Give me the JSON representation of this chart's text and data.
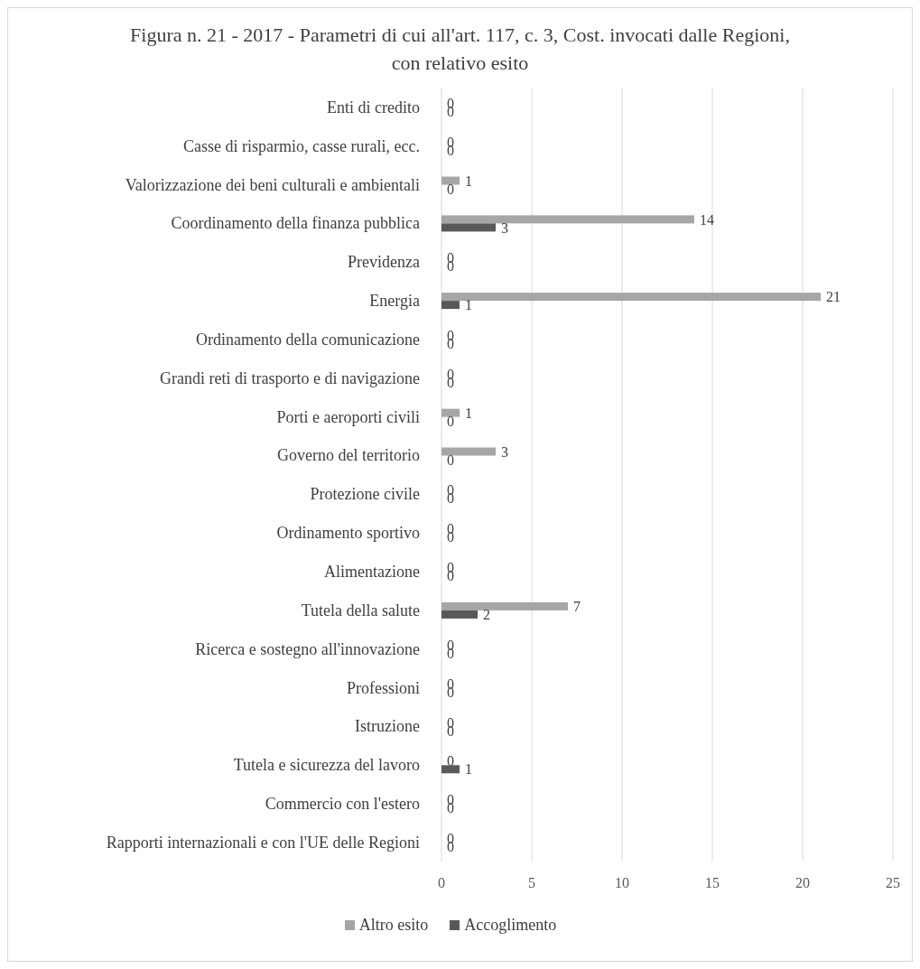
{
  "chart_data": {
    "type": "bar",
    "orientation": "horizontal",
    "title": "Figura n. 21 - 2017 - Parametri di cui all'art. 117, c. 3, Cost. invocati dalle Regioni, con relativo esito",
    "categories": [
      "Enti di credito",
      "Casse di risparmio, casse rurali, ecc.",
      "Valorizzazione dei beni culturali e ambientali",
      "Coordinamento della finanza pubblica",
      "Previdenza",
      "Energia",
      "Ordinamento della comunicazione",
      "Grandi reti di trasporto e di navigazione",
      "Porti e aeroporti civili",
      "Governo del territorio",
      "Protezione civile",
      "Ordinamento sportivo",
      "Alimentazione",
      "Tutela della salute",
      "Ricerca e sostegno all'innovazione",
      "Professioni",
      "Istruzione",
      "Tutela e sicurezza del lavoro",
      "Commercio con l'estero",
      "Rapporti internazionali e con l'UE delle Regioni"
    ],
    "series": [
      {
        "name": "Altro esito",
        "color": "#a6a6a6",
        "values": [
          0,
          0,
          1,
          14,
          0,
          21,
          0,
          0,
          1,
          3,
          0,
          0,
          0,
          7,
          0,
          0,
          0,
          0,
          0,
          0
        ]
      },
      {
        "name": "Accoglimento",
        "color": "#595959",
        "values": [
          0,
          0,
          0,
          3,
          0,
          1,
          0,
          0,
          0,
          0,
          0,
          0,
          0,
          2,
          0,
          0,
          0,
          1,
          0,
          0
        ]
      }
    ],
    "xlim": [
      0,
      25
    ],
    "xticks": [
      0,
      5,
      10,
      15,
      20,
      25
    ],
    "grid": "x",
    "legend": "bottom",
    "data_labels": true
  }
}
